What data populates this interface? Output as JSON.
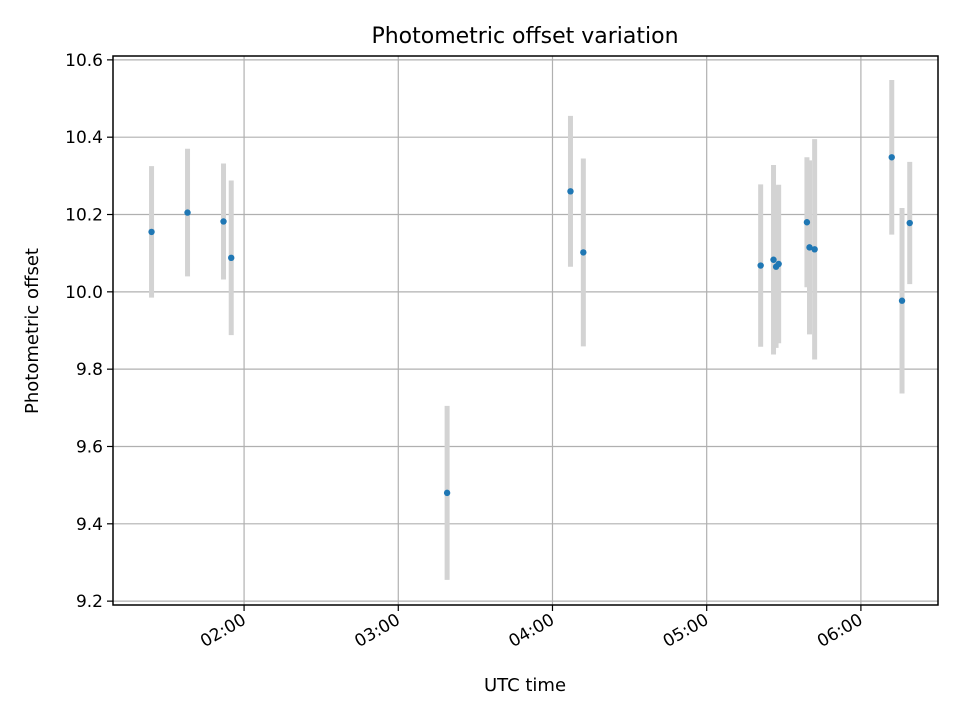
{
  "chart_data": {
    "type": "scatter",
    "title": "Photometric offset variation",
    "xlabel": "UTC time",
    "ylabel": "Photometric offset",
    "xlim": [
      "01:09",
      "06:30"
    ],
    "ylim": [
      9.19,
      10.61
    ],
    "xticks": [
      "02:00",
      "03:00",
      "04:00",
      "05:00",
      "06:00"
    ],
    "yticks": [
      "9.2",
      "9.4",
      "9.6",
      "9.8",
      "10.0",
      "10.2",
      "10.4",
      "10.6"
    ],
    "grid": true,
    "colors": {
      "points": "#1f77b4",
      "errorbars": "#d3d3d3"
    },
    "series": [
      {
        "x": [
          "01:24",
          "01:38",
          "01:52",
          "01:55",
          "03:19",
          "04:07",
          "04:12",
          "05:21",
          "05:26",
          "05:27",
          "05:28",
          "05:39",
          "05:40",
          "05:42",
          "06:12",
          "06:16",
          "06:19"
        ],
        "y": [
          10.155,
          10.205,
          10.182,
          10.088,
          9.48,
          10.26,
          10.102,
          10.068,
          10.083,
          10.065,
          10.072,
          10.18,
          10.115,
          10.11,
          10.348,
          9.977,
          10.178
        ],
        "err": [
          0.17,
          0.165,
          0.15,
          0.2,
          0.225,
          0.195,
          0.243,
          0.21,
          0.245,
          0.21,
          0.205,
          0.168,
          0.225,
          0.285,
          0.2,
          0.24,
          0.158
        ]
      }
    ]
  }
}
